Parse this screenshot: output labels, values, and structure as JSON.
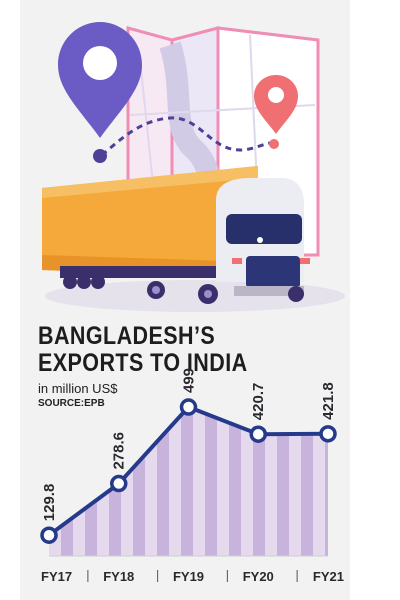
{
  "title_line1": "BANGLADESH’S",
  "title_line2": "EXPORTS TO INDIA",
  "subtitle": "in million US$",
  "source": "SOURCE:EPB",
  "colors": {
    "line": "#263a8c",
    "fill_stripe_light": "#e5d9ee",
    "fill_stripe_dark": "#c8b3dd",
    "marker_fill": "#ffffff",
    "background": "#f2f2f3"
  },
  "chart_data": {
    "type": "area",
    "categories": [
      "FY17",
      "FY18",
      "FY19",
      "FY20",
      "FY21"
    ],
    "values": [
      129.8,
      278.6,
      499,
      420.7,
      421.8
    ],
    "value_labels": [
      "129.8",
      "278.6",
      "499",
      "420.7",
      "421.8"
    ],
    "ylim": [
      70,
      620
    ],
    "grid": false,
    "legend": "none"
  }
}
